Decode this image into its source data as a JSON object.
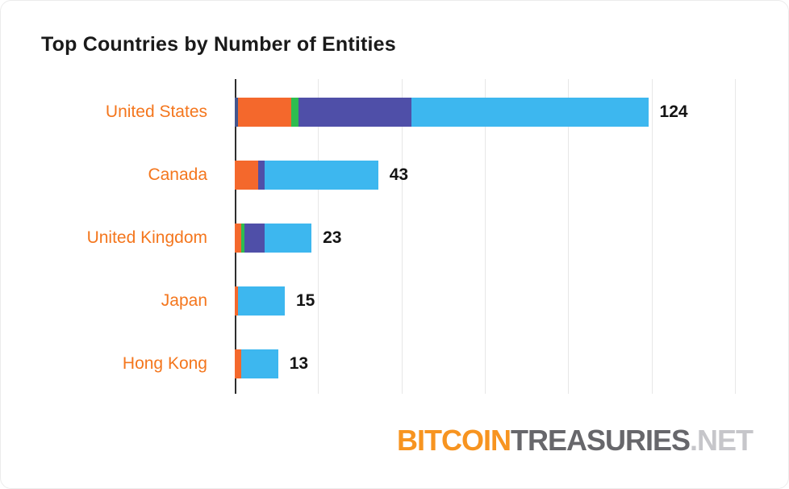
{
  "chart_data": {
    "type": "bar",
    "orientation": "horizontal",
    "stacked": true,
    "title": "Top Countries by Number of Entities",
    "categories": [
      "United States",
      "Canada",
      "United Kingdom",
      "Japan",
      "Hong Kong"
    ],
    "totals": [
      124,
      43,
      23,
      15,
      13
    ],
    "series": [
      {
        "name": "segment-navy",
        "color": "#44568e",
        "values": [
          1,
          0,
          0,
          0,
          0
        ]
      },
      {
        "name": "segment-orange",
        "color": "#f4682c",
        "values": [
          16,
          7,
          2,
          1,
          2
        ]
      },
      {
        "name": "segment-green",
        "color": "#2ebd4f",
        "values": [
          2,
          0,
          1,
          0,
          0
        ]
      },
      {
        "name": "segment-indigo",
        "color": "#4f4fa8",
        "values": [
          34,
          2,
          6,
          0,
          0
        ]
      },
      {
        "name": "segment-sky",
        "color": "#3db7ef",
        "values": [
          71,
          34,
          14,
          14,
          11
        ]
      }
    ],
    "xlim": [
      0,
      150
    ],
    "gridline_values": [
      0,
      25,
      50,
      75,
      100,
      125,
      150
    ],
    "grid": true,
    "legend": "none",
    "category_label_color": "#f4761d",
    "value_label_color": "#141414",
    "axis_color": "#2e2e2e",
    "gridline_color": "#e7e7e7"
  },
  "watermark": {
    "bitcoin": "BITCOIN",
    "treasuries": "TREASURIES",
    "net": ".NET",
    "bitcoin_color": "#f79420",
    "treasuries_color": "#67676b",
    "net_color": "#c6c6ca"
  }
}
